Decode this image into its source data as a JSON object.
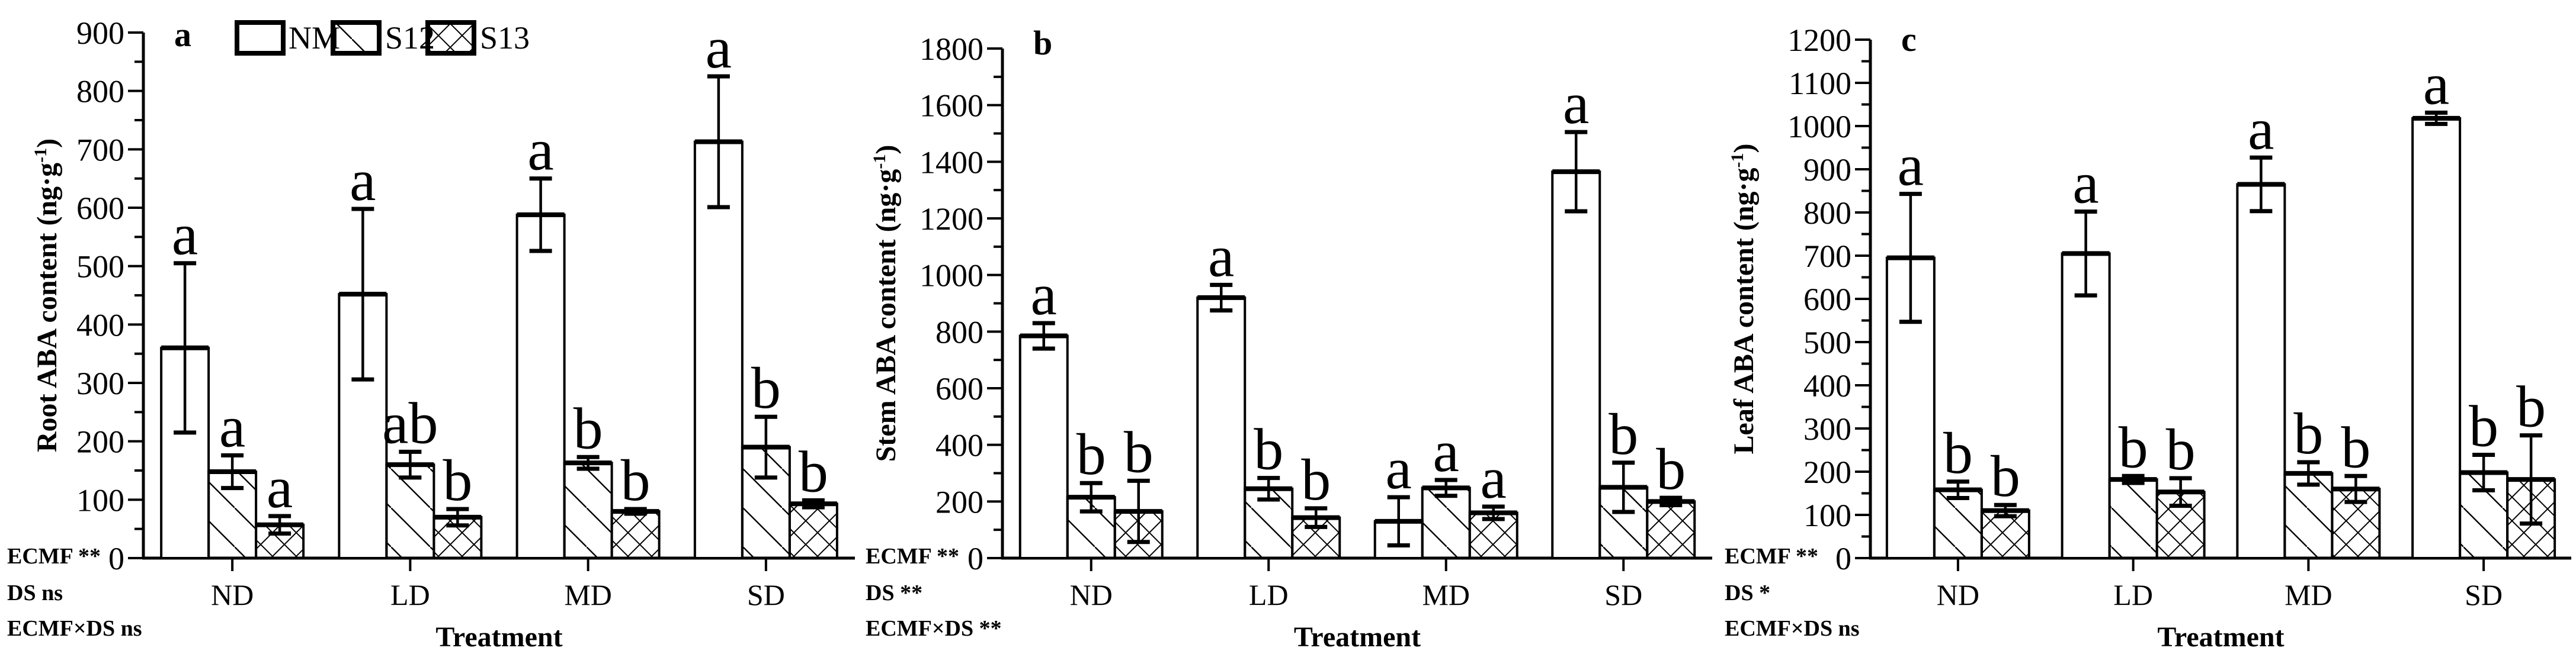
{
  "figure": {
    "background_color": "#ffffff",
    "ink_color": "#000000"
  },
  "legend": {
    "items": [
      {
        "label": "NM",
        "pattern": "plain"
      },
      {
        "label": "S12",
        "pattern": "diag"
      },
      {
        "label": "S13",
        "pattern": "cross"
      }
    ]
  },
  "chart_data": [
    {
      "type": "bar",
      "panel_label": "a",
      "ylabel": "Root ABA content (ng·g⁻¹)",
      "xlabel": "Treatment",
      "categories": [
        "ND",
        "LD",
        "MD",
        "SD"
      ],
      "ylim": [
        0,
        900
      ],
      "ytick_major": 100,
      "ytick_minor": 50,
      "grid": "off",
      "legend_position": "top-left-inside",
      "series": [
        {
          "name": "NM",
          "pattern": "plain",
          "values": [
            360,
            452,
            588,
            713
          ],
          "errors": [
            145,
            146,
            62,
            112
          ],
          "letters": [
            "a",
            "a",
            "a",
            "a"
          ]
        },
        {
          "name": "S12",
          "pattern": "diag",
          "values": [
            148,
            160,
            163,
            190
          ],
          "errors": [
            28,
            22,
            10,
            52
          ],
          "letters": [
            "a",
            "ab",
            "b",
            "b"
          ]
        },
        {
          "name": "S13",
          "pattern": "cross",
          "values": [
            57,
            70,
            80,
            93
          ],
          "errors": [
            15,
            14,
            4,
            6
          ],
          "letters": [
            "a",
            "b",
            "b",
            "b"
          ]
        }
      ],
      "stats": [
        "ECMF **",
        "DS ns",
        "ECMF×DS ns"
      ]
    },
    {
      "type": "bar",
      "panel_label": "b",
      "ylabel": "Stem ABA content (ng·g⁻¹)",
      "xlabel": "Treatment",
      "categories": [
        "ND",
        "LD",
        "MD",
        "SD"
      ],
      "ylim": [
        0,
        1800
      ],
      "ytick_major": 200,
      "ytick_minor": 100,
      "grid": "off",
      "legend_position": "none",
      "series": [
        {
          "name": "NM",
          "pattern": "plain",
          "values": [
            785,
            920,
            130,
            1365
          ],
          "errors": [
            45,
            45,
            85,
            140
          ],
          "letters": [
            "a",
            "a",
            "a",
            "a"
          ]
        },
        {
          "name": "S12",
          "pattern": "diag",
          "values": [
            215,
            245,
            248,
            250
          ],
          "errors": [
            50,
            38,
            28,
            87
          ],
          "letters": [
            "b",
            "b",
            "a",
            "b"
          ]
        },
        {
          "name": "S13",
          "pattern": "cross",
          "values": [
            165,
            143,
            160,
            200
          ],
          "errors": [
            108,
            33,
            22,
            13
          ],
          "letters": [
            "b",
            "b",
            "a",
            "b"
          ]
        }
      ],
      "stats": [
        "ECMF **",
        "DS **",
        "ECMF×DS **"
      ]
    },
    {
      "type": "bar",
      "panel_label": "c",
      "ylabel": "Leaf ABA content (ng·g⁻¹)",
      "xlabel": "Treatment",
      "categories": [
        "ND",
        "LD",
        "MD",
        "SD"
      ],
      "ylim": [
        0,
        1200
      ],
      "ytick_major": 100,
      "ytick_minor": 50,
      "grid": "off",
      "legend_position": "none",
      "series": [
        {
          "name": "NM",
          "pattern": "plain",
          "values": [
            695,
            705,
            865,
            1018
          ],
          "errors": [
            148,
            97,
            62,
            13
          ],
          "letters": [
            "a",
            "a",
            "a",
            "a"
          ]
        },
        {
          "name": "S12",
          "pattern": "diag",
          "values": [
            158,
            182,
            196,
            198
          ],
          "errors": [
            19,
            8,
            26,
            41
          ],
          "letters": [
            "b",
            "b",
            "b",
            "b"
          ]
        },
        {
          "name": "S13",
          "pattern": "cross",
          "values": [
            110,
            153,
            160,
            182
          ],
          "errors": [
            13,
            32,
            30,
            102
          ],
          "letters": [
            "b",
            "b",
            "b",
            "b"
          ]
        }
      ],
      "stats": [
        "ECMF **",
        "DS *",
        "ECMF×DS ns"
      ]
    }
  ]
}
